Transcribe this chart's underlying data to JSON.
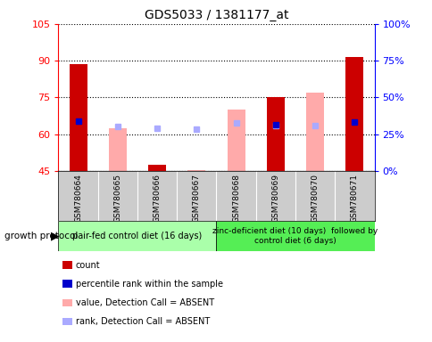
{
  "title": "GDS5033 / 1381177_at",
  "samples": [
    "GSM780664",
    "GSM780665",
    "GSM780666",
    "GSM780667",
    "GSM780668",
    "GSM780669",
    "GSM780670",
    "GSM780671"
  ],
  "ylim_left": [
    45,
    105
  ],
  "ylim_right": [
    0,
    100
  ],
  "yticks_left": [
    45,
    60,
    75,
    90,
    105
  ],
  "yticks_right": [
    0,
    25,
    50,
    75,
    100
  ],
  "ytick_labels_right": [
    "0%",
    "25%",
    "50%",
    "75%",
    "100%"
  ],
  "count_values": [
    88.5,
    null,
    47.5,
    null,
    null,
    75.0,
    null,
    91.5
  ],
  "percentile_rank_values": [
    65.5,
    null,
    null,
    null,
    null,
    64.0,
    null,
    65.0
  ],
  "value_absent": [
    null,
    62.5,
    null,
    45.5,
    70.0,
    null,
    77.0,
    null
  ],
  "rank_absent": [
    null,
    63.0,
    62.5,
    62.0,
    64.5,
    63.5,
    63.5,
    null
  ],
  "count_color": "#cc0000",
  "percentile_color": "#0000cc",
  "value_absent_color": "#ffaaaa",
  "rank_absent_color": "#aaaaff",
  "group1_samples": [
    0,
    1,
    2,
    3
  ],
  "group2_samples": [
    4,
    5,
    6,
    7
  ],
  "group1_label": "pair-fed control diet (16 days)",
  "group2_label": "zinc-deficient diet (10 days)  followed by\ncontrol diet (6 days)",
  "group1_color": "#aaffaa",
  "group2_color": "#55ee55",
  "protocol_label": "growth protocol",
  "bg_color": "#cccccc",
  "plot_bg": "#ffffff",
  "legend_items": [
    "count",
    "percentile rank within the sample",
    "value, Detection Call = ABSENT",
    "rank, Detection Call = ABSENT"
  ],
  "legend_colors": [
    "#cc0000",
    "#0000cc",
    "#ffaaaa",
    "#aaaaff"
  ]
}
